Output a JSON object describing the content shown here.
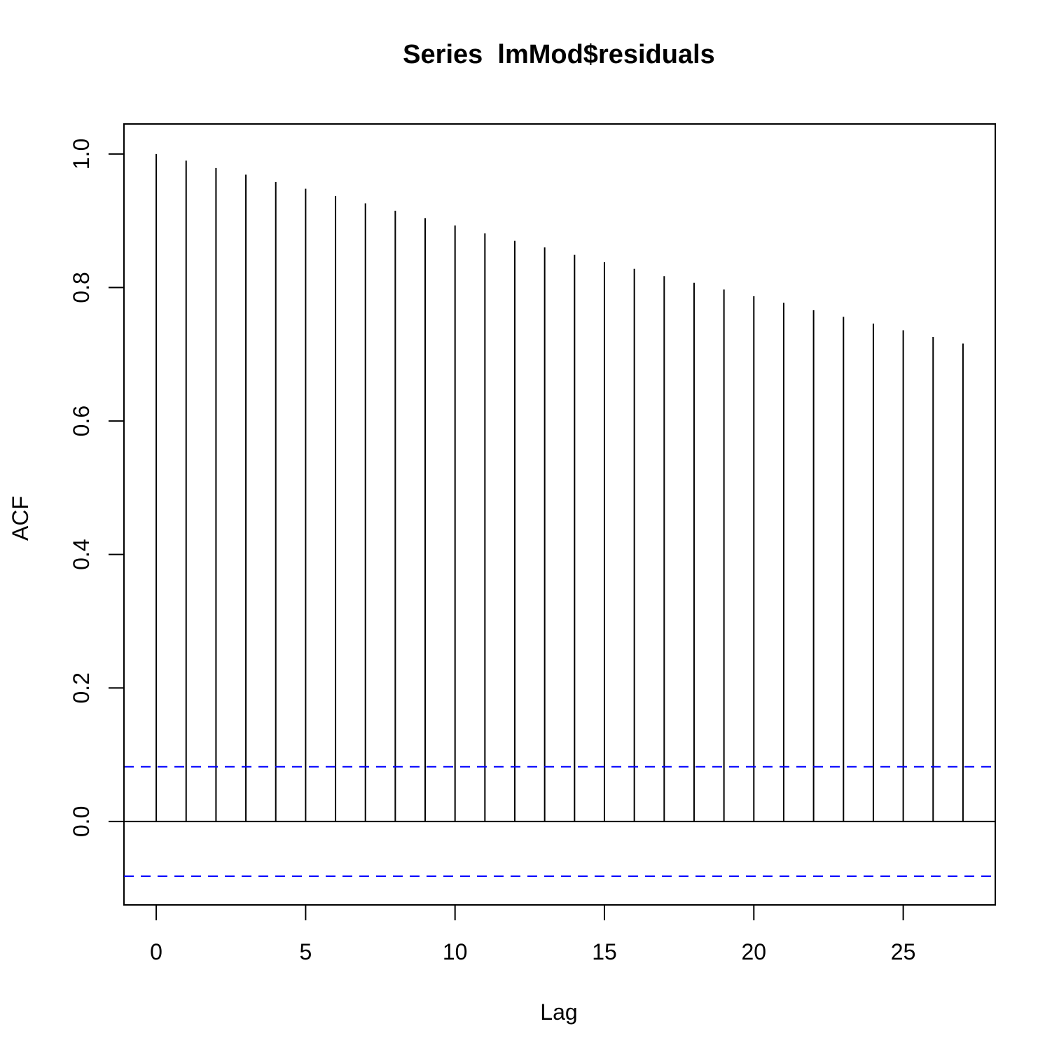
{
  "chart_data": {
    "type": "bar",
    "title": "Series  lmMod$residuals",
    "xlabel": "Lag",
    "ylabel": "ACF",
    "xlim": [
      -1.08,
      28.08
    ],
    "ylim": [
      -0.125,
      1.045
    ],
    "x_ticks": [
      0,
      5,
      10,
      15,
      20,
      25
    ],
    "x_tick_labels": [
      "0",
      "5",
      "10",
      "15",
      "20",
      "25"
    ],
    "y_ticks": [
      0.0,
      0.2,
      0.4,
      0.6,
      0.8,
      1.0
    ],
    "y_tick_labels": [
      "0.0",
      "0.2",
      "0.4",
      "0.6",
      "0.8",
      "1.0"
    ],
    "lags": [
      0,
      1,
      2,
      3,
      4,
      5,
      6,
      7,
      8,
      9,
      10,
      11,
      12,
      13,
      14,
      15,
      16,
      17,
      18,
      19,
      20,
      21,
      22,
      23,
      24,
      25,
      26,
      27
    ],
    "acf": [
      1.0,
      0.99,
      0.979,
      0.969,
      0.958,
      0.948,
      0.937,
      0.926,
      0.915,
      0.904,
      0.893,
      0.881,
      0.87,
      0.86,
      0.849,
      0.838,
      0.828,
      0.817,
      0.807,
      0.797,
      0.787,
      0.777,
      0.766,
      0.756,
      0.746,
      0.736,
      0.726,
      0.716
    ],
    "confidence_bound": 0.082,
    "bar_color": "#000000",
    "ci_color": "#0000ff",
    "grid": false
  }
}
